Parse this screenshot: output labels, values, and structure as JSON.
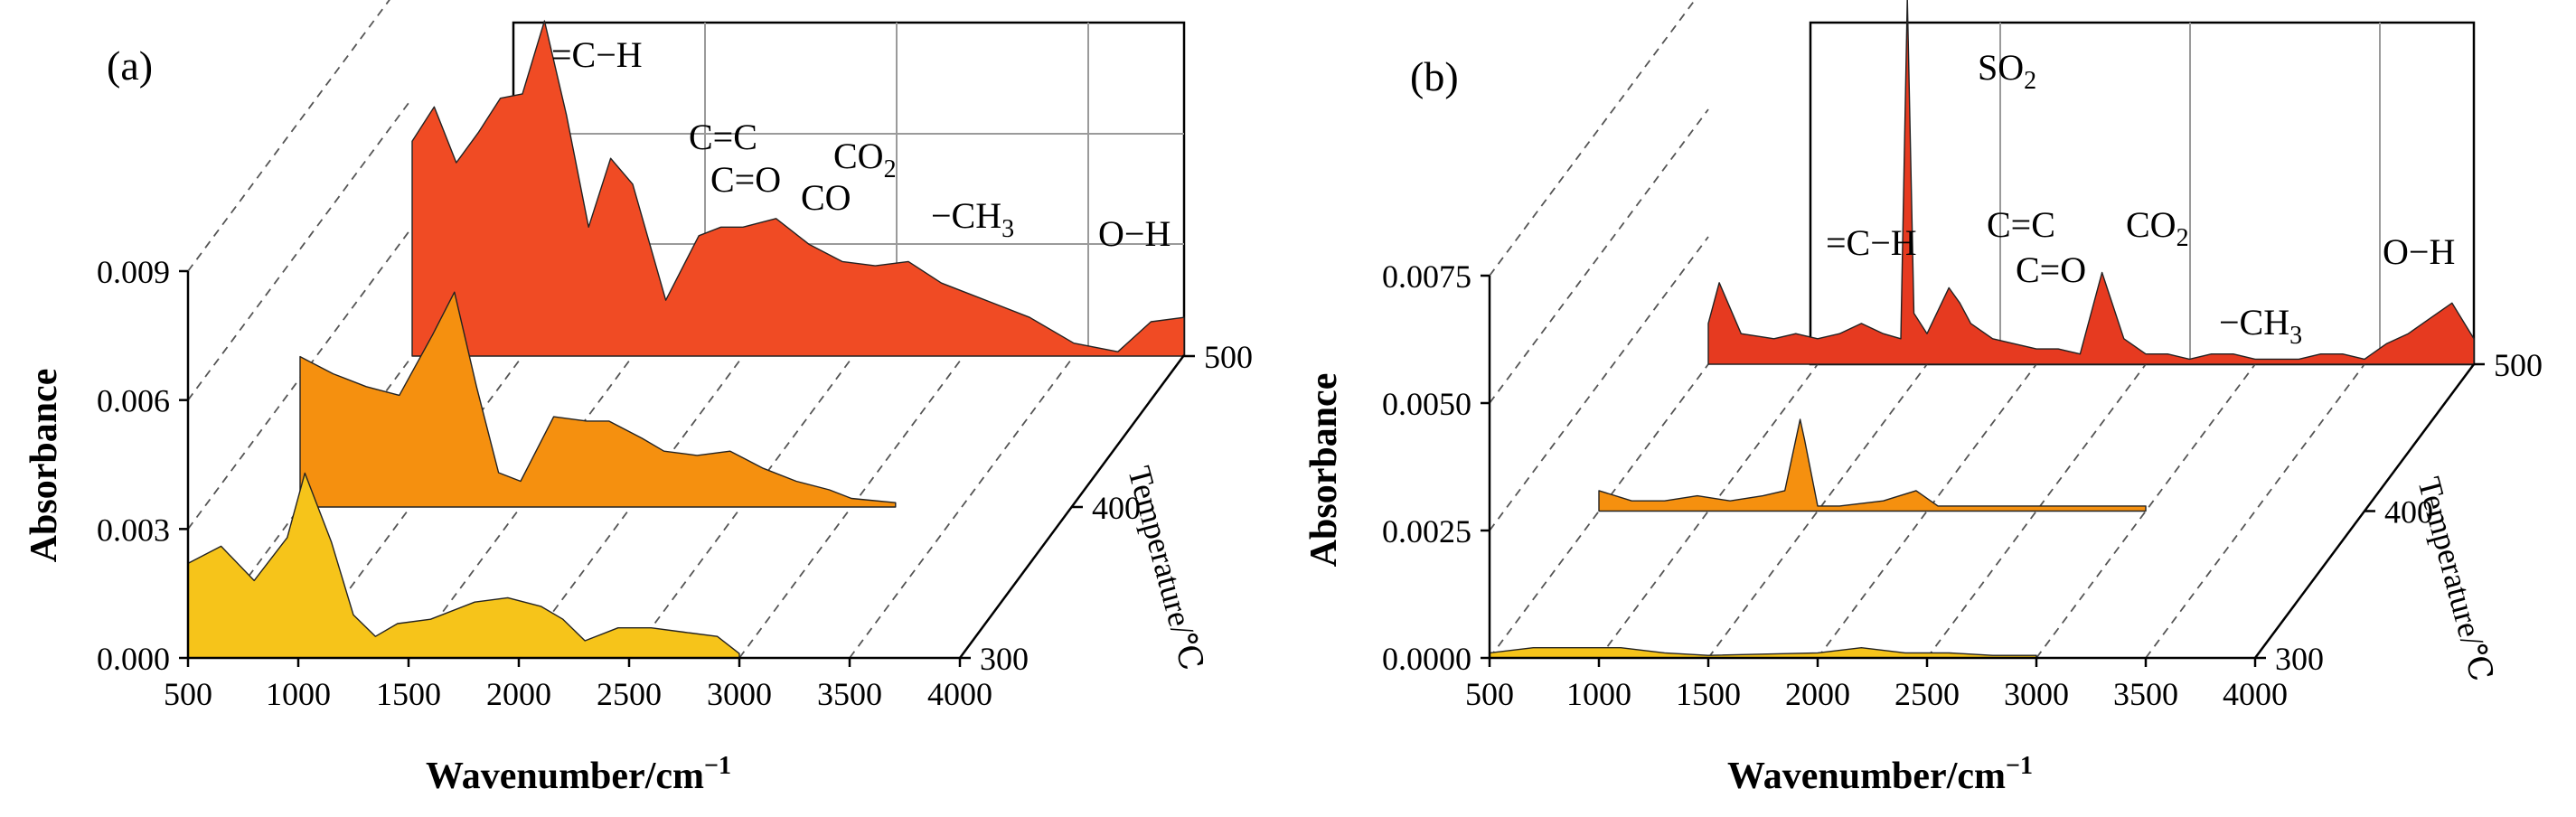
{
  "chart_data": [
    {
      "type": "area",
      "panel_label": "(a)",
      "xlabel": "Wavenumber/cm",
      "xlabel_sup": "−1",
      "ylabel": "Absorbance",
      "zlabel": "Temperature/℃",
      "x_ticks": [
        "500",
        "1000",
        "1500",
        "2000",
        "2500",
        "3000",
        "3500",
        "4000"
      ],
      "y_ticks": [
        "0.000",
        "0.003",
        "0.006",
        "0.009"
      ],
      "z_ticks": [
        "300",
        "400",
        "500"
      ],
      "xlim": [
        500,
        4000
      ],
      "ylim": [
        0,
        0.009
      ],
      "series": [
        {
          "name": "300 ℃",
          "temperature": 300,
          "color": "#F6C41A",
          "x": [
            500,
            650,
            800,
            950,
            1030,
            1150,
            1250,
            1350,
            1450,
            1600,
            1800,
            1950,
            2100,
            2200,
            2300,
            2450,
            2600,
            2750,
            2900,
            3000
          ],
          "y": [
            0.0022,
            0.0026,
            0.0018,
            0.0028,
            0.0043,
            0.0027,
            0.001,
            0.0005,
            0.0008,
            0.0009,
            0.0013,
            0.0014,
            0.0012,
            0.0009,
            0.0004,
            0.0007,
            0.0007,
            0.0006,
            0.0005,
            0.0001
          ]
        },
        {
          "name": "400 ℃",
          "temperature": 400,
          "color": "#F5900F",
          "x": [
            500,
            650,
            800,
            950,
            1100,
            1200,
            1300,
            1400,
            1500,
            1650,
            1800,
            1900,
            2050,
            2150,
            2300,
            2450,
            2600,
            2750,
            2900,
            3000,
            3200
          ],
          "y": [
            0.0035,
            0.0031,
            0.0028,
            0.0026,
            0.004,
            0.005,
            0.0028,
            0.0008,
            0.0006,
            0.0021,
            0.002,
            0.002,
            0.0016,
            0.0013,
            0.0012,
            0.0013,
            0.0009,
            0.0006,
            0.0004,
            0.0002,
            0.0001
          ]
        },
        {
          "name": "500 ℃",
          "temperature": 500,
          "color": "#F04B24",
          "x": [
            500,
            600,
            700,
            800,
            900,
            1000,
            1100,
            1200,
            1300,
            1400,
            1500,
            1650,
            1800,
            1900,
            2000,
            2150,
            2300,
            2450,
            2600,
            2750,
            2900,
            3000,
            3150,
            3300,
            3500,
            3700,
            3850,
            4000
          ],
          "y": [
            0.005,
            0.0058,
            0.0045,
            0.0052,
            0.006,
            0.0061,
            0.0078,
            0.0056,
            0.003,
            0.0046,
            0.004,
            0.0013,
            0.0028,
            0.003,
            0.003,
            0.0032,
            0.0026,
            0.0022,
            0.0021,
            0.0022,
            0.0017,
            0.0015,
            0.0012,
            0.0009,
            0.0003,
            0.0001,
            0.0008,
            0.0009
          ]
        }
      ],
      "annotations": [
        "=C−H",
        "C=C",
        "C=O",
        "CO",
        "CO",
        "2",
        "−CH",
        "3",
        "O−H"
      ]
    },
    {
      "type": "area",
      "panel_label": "(b)",
      "xlabel": "Wavenumber/cm",
      "xlabel_sup": "−1",
      "ylabel": "Absorbance",
      "zlabel": "Temperature/℃",
      "x_ticks": [
        "500",
        "1000",
        "1500",
        "2000",
        "2500",
        "3000",
        "3500",
        "4000"
      ],
      "y_ticks": [
        "0.0000",
        "0.0025",
        "0.0050",
        "0.0075"
      ],
      "z_ticks": [
        "300",
        "400",
        "500"
      ],
      "xlim": [
        500,
        4000
      ],
      "ylim": [
        0,
        0.0075
      ],
      "series": [
        {
          "name": "300 ℃",
          "temperature": 300,
          "color": "#F6C41A",
          "x": [
            500,
            700,
            900,
            1100,
            1300,
            1500,
            2000,
            2200,
            2400,
            2600,
            2800,
            3000
          ],
          "y": [
            0.0001,
            0.0002,
            0.0002,
            0.0002,
            0.0001,
            5e-05,
            0.0001,
            0.0002,
            0.0001,
            0.0001,
            5e-05,
            5e-05
          ]
        },
        {
          "name": "400 ℃",
          "temperature": 400,
          "color": "#F5900F",
          "x": [
            500,
            650,
            800,
            950,
            1100,
            1250,
            1350,
            1420,
            1440,
            1500,
            1600,
            1800,
            1950,
            2050,
            2200,
            2400,
            2600,
            2800,
            3000
          ],
          "y": [
            0.0004,
            0.0002,
            0.0002,
            0.0003,
            0.0002,
            0.0003,
            0.0004,
            0.0018,
            0.0014,
            0.0001,
            0.0001,
            0.0002,
            0.0004,
            0.0001,
            0.0001,
            0.0001,
            0.0001,
            0.0001,
            0.0001
          ]
        },
        {
          "name": "500 ℃",
          "temperature": 500,
          "color": "#E63A20",
          "x": [
            500,
            550,
            650,
            800,
            900,
            1000,
            1100,
            1200,
            1300,
            1380,
            1410,
            1440,
            1500,
            1600,
            1650,
            1700,
            1800,
            1900,
            2000,
            2100,
            2200,
            2300,
            2400,
            2500,
            2600,
            2700,
            2800,
            2900,
            3000,
            3100,
            3200,
            3300,
            3400,
            3500,
            3600,
            3700,
            3800,
            3900,
            4000
          ],
          "y": [
            0.0008,
            0.0016,
            0.0006,
            0.0005,
            0.0006,
            0.0005,
            0.0006,
            0.0008,
            0.0006,
            0.0005,
            0.0072,
            0.001,
            0.0006,
            0.0015,
            0.0012,
            0.0008,
            0.0005,
            0.0004,
            0.0003,
            0.0003,
            0.0002,
            0.0018,
            0.0005,
            0.0002,
            0.0002,
            0.0001,
            0.0002,
            0.0002,
            0.0001,
            0.0001,
            0.0001,
            0.0002,
            0.0002,
            0.0001,
            0.0004,
            0.0006,
            0.0009,
            0.0012,
            0.0005
          ]
        }
      ],
      "annotations": [
        "SO",
        "2",
        "=C−H",
        "C=C",
        "C=O",
        "CO",
        "2",
        "−CH",
        "3",
        "O−H"
      ]
    }
  ]
}
